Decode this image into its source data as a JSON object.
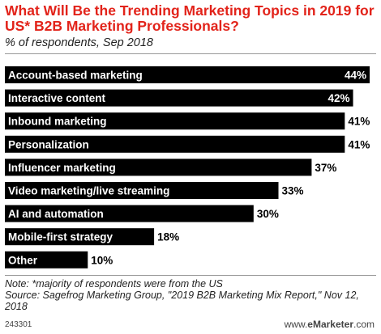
{
  "chart_data": {
    "type": "bar",
    "orientation": "horizontal",
    "title": "What Will Be the Trending Marketing Topics in 2019 for US* B2B Marketing Professionals?",
    "subtitle": "% of respondents, Sep 2018",
    "categories": [
      "Account-based marketing",
      "Interactive content",
      "Inbound marketing",
      "Personalization",
      "Influencer marketing",
      "Video marketing/live streaming",
      "AI and automation",
      "Mobile-first strategy",
      "Other"
    ],
    "values": [
      44,
      42,
      41,
      41,
      37,
      33,
      30,
      18,
      10
    ],
    "value_labels": [
      "44%",
      "42%",
      "41%",
      "41%",
      "37%",
      "33%",
      "30%",
      "18%",
      "10%"
    ],
    "xlim": [
      0,
      44
    ],
    "grid": false,
    "legend": "none",
    "bar_color": "#000000",
    "title_color": "#e2231a"
  },
  "footer": {
    "note": "Note: *majority of respondents were from the US",
    "source": "Source: Sagefrog Marketing Group, \"2019 B2B Marketing Mix Report,\" Nov 12, 2018",
    "chart_id": "243301",
    "brand_prefix": "www.",
    "brand_name": "eMarketer",
    "brand_suffix": ".com"
  }
}
